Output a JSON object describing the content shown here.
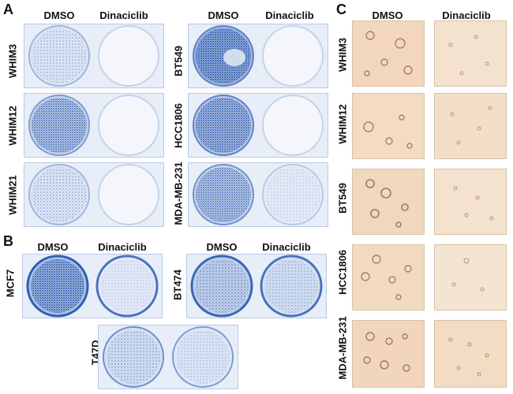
{
  "panels": {
    "A": {
      "letter": "A",
      "col_left": "DMSO",
      "col_right": "Dinaciclib",
      "rows_left": [
        "WHIM3",
        "WHIM12",
        "WHIM21"
      ],
      "rows_right": [
        "BT549",
        "HCC1806",
        "MDA-MB-231"
      ]
    },
    "B": {
      "letter": "B",
      "col_left": "DMSO",
      "col_right": "Dinaciclib",
      "rows": [
        "MCF7",
        "BT474",
        "T47D"
      ]
    },
    "C": {
      "letter": "C",
      "col_left": "DMSO",
      "col_right": "Dinaciclib",
      "rows": [
        "WHIM3",
        "WHIM12",
        "BT549",
        "HCC1806",
        "MDA-MB-231"
      ]
    }
  },
  "colors": {
    "stain_blue": "#2f5fb3",
    "plate_bg": "#e7eef8",
    "micro_bg": "#f2dcc0"
  }
}
